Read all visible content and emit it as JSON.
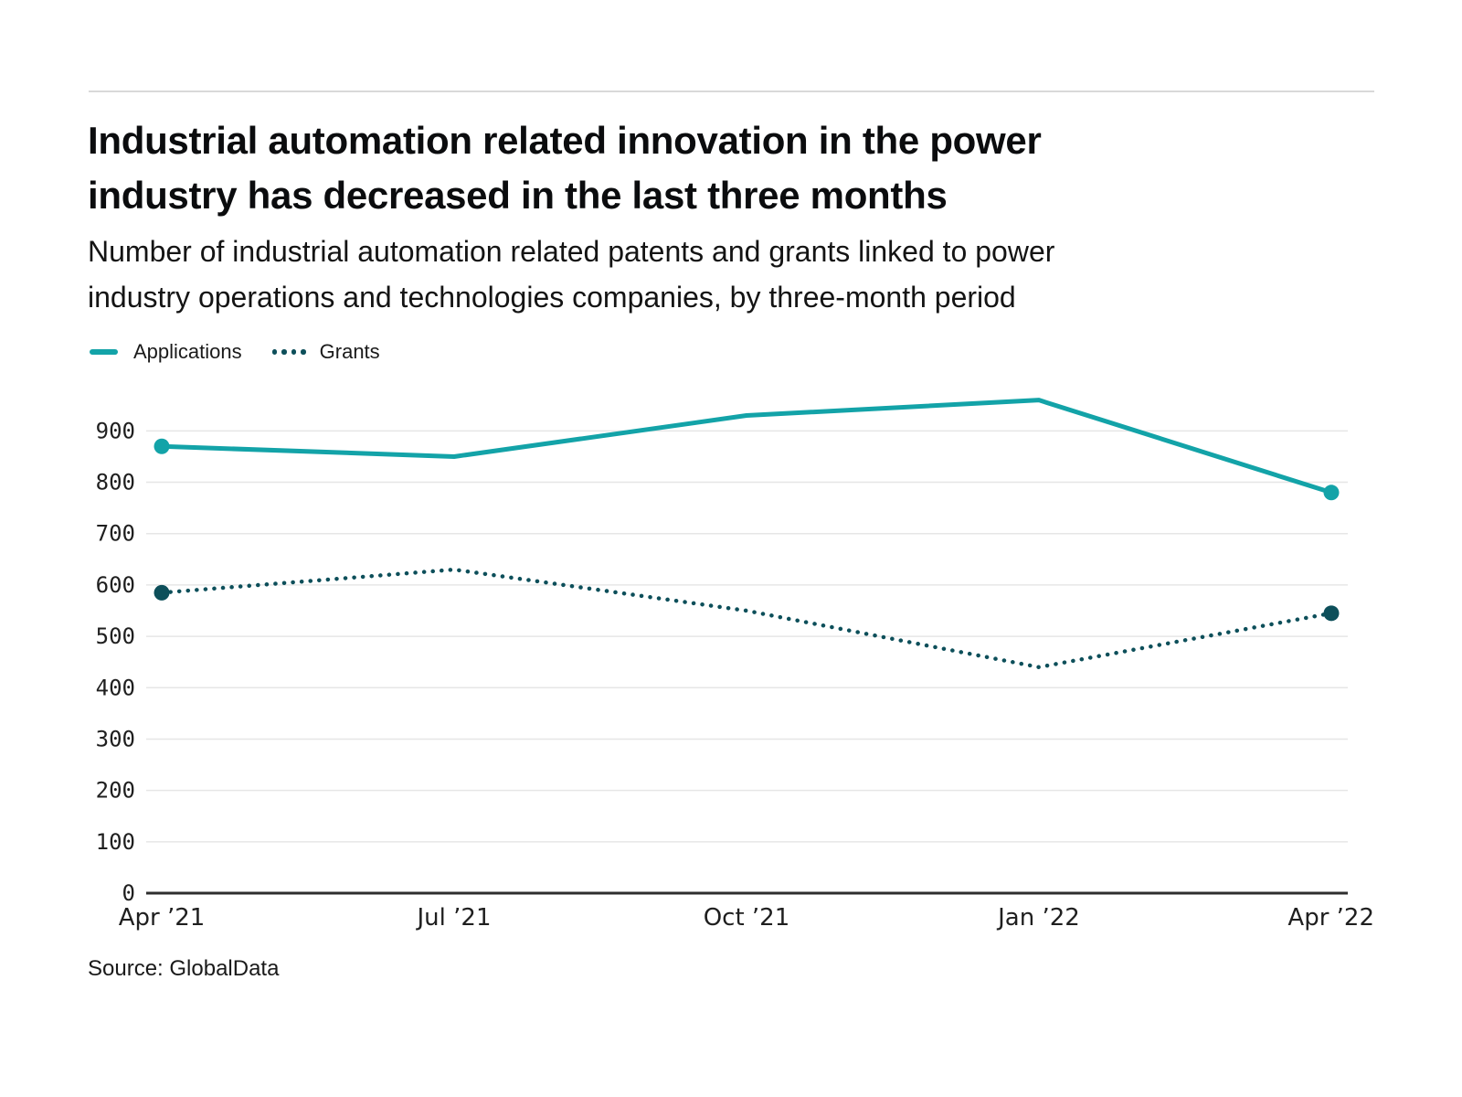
{
  "page": {
    "title": "Industrial automation related innovation in the power\nindustry has decreased in the last three months",
    "subtitle": "Number of industrial automation related patents and grants linked to power\nindustry operations and technologies companies, by three-month period",
    "source": "Source: GlobalData"
  },
  "legend": {
    "applications_label": "Applications",
    "grants_label": "Grants"
  },
  "colors": {
    "applications": "#13a3a8",
    "grants": "#0d4f5a",
    "grid": "#e6e6e6",
    "axis": "#2e2e2e",
    "tick_text": "#1f1f1f",
    "top_rule": "#d9d9d9"
  },
  "chart_data": {
    "type": "line",
    "categories": [
      "Apr ’21",
      "Jul ’21",
      "Oct ’21",
      "Jan ’22",
      "Apr ’22"
    ],
    "series": [
      {
        "name": "Applications",
        "style": "solid",
        "color_key": "applications",
        "values": [
          870,
          850,
          930,
          960,
          780
        ],
        "endpoint_markers": true
      },
      {
        "name": "Grants",
        "style": "dotted",
        "color_key": "grants",
        "values": [
          585,
          630,
          550,
          440,
          545
        ],
        "endpoint_markers": true
      }
    ],
    "ylim": [
      0,
      900
    ],
    "ytick_step": 100,
    "grid": "horizontal",
    "legend_position": "top-left",
    "xlabel": "",
    "ylabel": ""
  }
}
